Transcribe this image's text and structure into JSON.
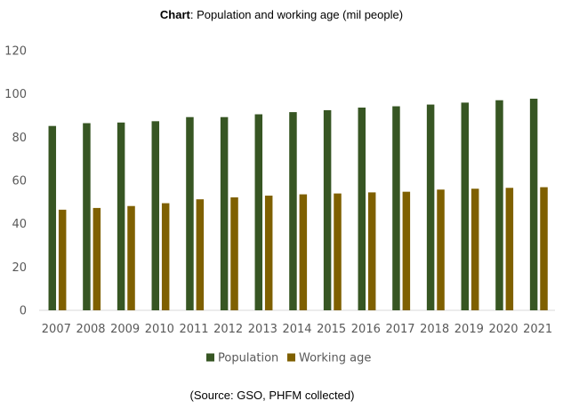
{
  "header": {
    "title_bold": "Chart",
    "title_rest": ": Population and working age (mil people)"
  },
  "footer": {
    "source": "(Source: GSO, PHFM collected)"
  },
  "chart_data": {
    "type": "bar",
    "title": "Chart: Population and working age (mil people)",
    "xlabel": "",
    "ylabel": "",
    "ylim": [
      0,
      120
    ],
    "yticks": [
      0,
      20,
      40,
      60,
      80,
      100,
      120
    ],
    "grid": false,
    "legend_position": "bottom",
    "categories": [
      "2007",
      "2008",
      "2009",
      "2010",
      "2011",
      "2012",
      "2013",
      "2014",
      "2015",
      "2016",
      "2017",
      "2018",
      "2019",
      "2020",
      "2021"
    ],
    "series": [
      {
        "name": "Population",
        "color": "#375623",
        "values": [
          85.2,
          86.5,
          86.8,
          87.4,
          89.3,
          89.3,
          90.6,
          91.6,
          92.5,
          93.7,
          94.3,
          95.1,
          96.0,
          97.1,
          97.8
        ]
      },
      {
        "name": "Working age",
        "color": "#7f6000",
        "values": [
          46.5,
          47.3,
          48.2,
          49.5,
          51.3,
          52.2,
          53.0,
          53.6,
          54.0,
          54.5,
          54.8,
          55.8,
          56.2,
          56.6,
          56.9
        ]
      }
    ]
  }
}
